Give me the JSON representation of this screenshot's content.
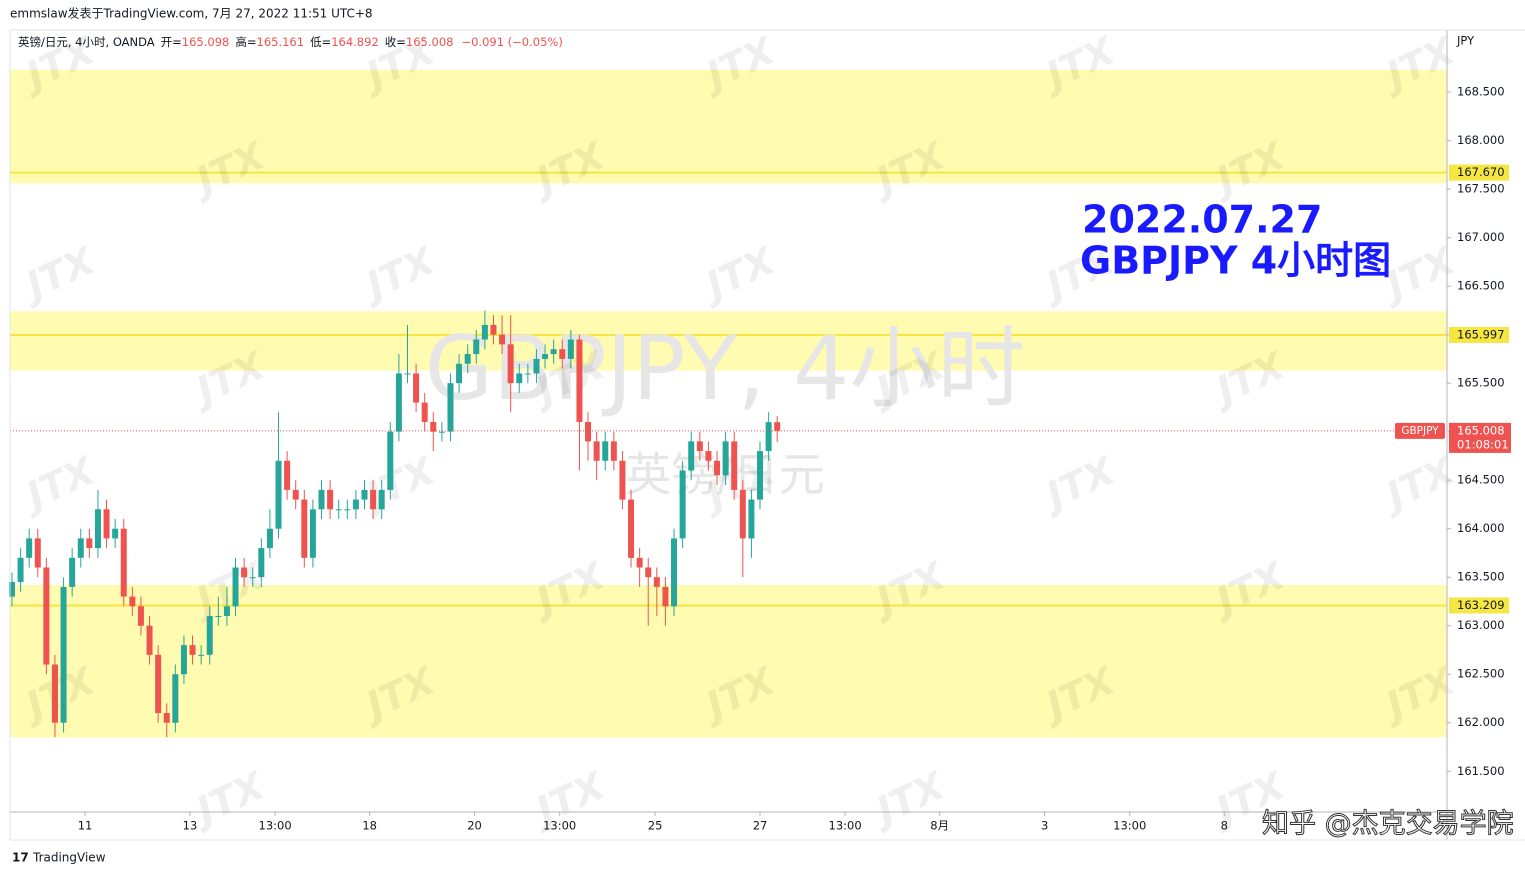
{
  "header": "emmslaw发表于TradingView.com, 7月 27, 2022 11:51 UTC+8",
  "logo": "TradingView",
  "credit": "知乎 @杰克交易学院",
  "brand_watermark": "JTX",
  "chart_data": {
    "type": "candlestick",
    "legend": {
      "symbol": "英镑/日元, 4小时, OANDA",
      "open_label": "开=",
      "high_label": "高=",
      "low_label": "低=",
      "close_label": "收=",
      "change": "−0.091 (−0.05%)"
    },
    "annotation": [
      "2022.07.27",
      "GBPJPY 4小时图"
    ],
    "watermark": [
      "GBPJPY, 4小时",
      "英镑/日元"
    ],
    "y_unit": "JPY",
    "symbol_tag": "GBPJPY",
    "countdown": "01:08:01",
    "up_color": "#26a69a",
    "down_color": "#ef5350",
    "open": [
      163.3,
      163.45,
      163.7,
      163.9,
      163.6,
      162.6,
      162.0,
      163.4,
      163.7,
      163.9,
      163.8,
      164.2,
      163.9,
      164.0,
      163.3,
      163.2,
      163.0,
      162.7,
      162.1,
      162.0,
      162.5,
      162.8,
      162.7,
      162.7,
      163.1,
      163.1,
      163.2,
      163.6,
      163.5,
      163.5,
      163.8,
      164.0,
      164.7,
      164.4,
      164.3,
      163.7,
      164.2,
      164.4,
      164.2,
      164.2,
      164.2,
      164.3,
      164.4,
      164.2,
      164.4,
      165.0,
      165.6,
      165.6,
      165.3,
      165.1,
      165.0,
      165.0,
      165.5,
      165.7,
      165.8,
      165.95,
      166.1,
      166.0,
      165.9,
      165.5,
      165.6,
      165.6,
      165.75,
      165.8,
      165.85,
      165.75,
      165.95,
      165.1,
      164.9,
      164.7,
      164.9,
      164.7,
      164.3,
      163.7,
      163.6,
      163.5,
      163.4,
      163.2,
      163.9,
      164.6,
      164.9,
      164.8,
      164.7,
      164.55,
      164.9,
      164.4,
      163.9,
      164.3,
      164.8,
      165.098
    ],
    "high": [
      163.55,
      163.8,
      164.0,
      164.0,
      163.7,
      162.7,
      163.5,
      163.8,
      164.0,
      164.0,
      164.4,
      164.3,
      164.1,
      164.1,
      163.4,
      163.3,
      163.1,
      162.8,
      162.2,
      162.6,
      162.9,
      162.9,
      162.8,
      163.2,
      163.3,
      163.4,
      163.7,
      163.7,
      163.6,
      163.9,
      164.2,
      165.2,
      164.8,
      164.5,
      164.4,
      164.3,
      164.5,
      164.5,
      164.3,
      164.3,
      164.4,
      164.5,
      164.5,
      164.5,
      165.1,
      165.8,
      166.1,
      165.7,
      165.4,
      165.2,
      165.1,
      165.6,
      165.8,
      165.9,
      166.05,
      166.25,
      166.2,
      166.2,
      166.2,
      165.7,
      165.7,
      165.85,
      165.9,
      165.95,
      165.95,
      166.05,
      166.0,
      165.2,
      165.0,
      165.0,
      165.0,
      164.8,
      164.4,
      163.8,
      163.7,
      163.6,
      163.5,
      164.0,
      164.7,
      165.0,
      165.0,
      164.9,
      164.8,
      165.0,
      165.0,
      164.5,
      164.4,
      164.9,
      165.2,
      165.161
    ],
    "low": [
      163.2,
      163.35,
      163.6,
      163.5,
      162.5,
      161.85,
      161.9,
      163.3,
      163.6,
      163.7,
      163.7,
      163.8,
      163.8,
      163.2,
      163.1,
      162.9,
      162.6,
      162.0,
      161.85,
      161.9,
      162.4,
      162.6,
      162.6,
      162.6,
      163.0,
      163.0,
      163.1,
      163.4,
      163.4,
      163.4,
      163.7,
      163.9,
      164.3,
      164.2,
      163.6,
      163.6,
      164.1,
      164.1,
      164.1,
      164.1,
      164.1,
      164.2,
      164.1,
      164.1,
      164.3,
      164.9,
      165.5,
      165.2,
      165.0,
      164.8,
      164.9,
      164.9,
      165.4,
      165.6,
      165.7,
      165.85,
      165.9,
      165.8,
      165.2,
      165.4,
      165.5,
      165.5,
      165.65,
      165.7,
      165.65,
      165.65,
      164.6,
      164.7,
      164.5,
      164.6,
      164.6,
      164.2,
      163.6,
      163.4,
      163.0,
      163.1,
      163.0,
      163.1,
      163.8,
      164.5,
      164.7,
      164.6,
      164.45,
      164.45,
      164.3,
      163.5,
      163.7,
      164.2,
      164.7,
      164.892
    ],
    "close": [
      163.45,
      163.7,
      163.9,
      163.6,
      162.6,
      162.0,
      163.4,
      163.7,
      163.9,
      163.8,
      164.2,
      163.9,
      164.0,
      163.3,
      163.2,
      163.0,
      162.7,
      162.1,
      162.0,
      162.5,
      162.8,
      162.7,
      162.7,
      163.1,
      163.1,
      163.2,
      163.6,
      163.5,
      163.5,
      163.8,
      164.0,
      164.7,
      164.4,
      164.3,
      163.7,
      164.2,
      164.4,
      164.2,
      164.2,
      164.2,
      164.3,
      164.4,
      164.2,
      164.4,
      165.0,
      165.6,
      165.6,
      165.3,
      165.1,
      165.0,
      165.0,
      165.5,
      165.7,
      165.8,
      165.95,
      166.1,
      166.0,
      165.9,
      165.5,
      165.6,
      165.6,
      165.75,
      165.8,
      165.85,
      165.75,
      165.95,
      165.1,
      164.9,
      164.7,
      164.9,
      164.7,
      164.3,
      163.7,
      163.6,
      163.5,
      163.4,
      163.2,
      163.9,
      164.6,
      164.9,
      164.8,
      164.7,
      164.55,
      164.9,
      164.4,
      163.9,
      164.3,
      164.8,
      165.098,
      165.008
    ],
    "xlim": [
      -0.23,
      166.9
    ],
    "xticks": [
      {
        "value": 8.5,
        "label": "11"
      },
      {
        "value": 20.7,
        "label": "13"
      },
      {
        "value": 30.6,
        "label": "13:00"
      },
      {
        "value": 41.6,
        "label": "18"
      },
      {
        "value": 53.8,
        "label": "20"
      },
      {
        "value": 63.7,
        "label": "13:00"
      },
      {
        "value": 74.8,
        "label": "25"
      },
      {
        "value": 87,
        "label": "27"
      },
      {
        "value": 96.9,
        "label": "13:00"
      },
      {
        "value": 107.9,
        "label": "8月"
      },
      {
        "value": 120.1,
        "label": "3"
      },
      {
        "value": 130,
        "label": "13:00"
      },
      {
        "value": 141,
        "label": "8"
      }
    ],
    "ylim": [
      161.08,
      169.14
    ],
    "yticks": [
      {
        "value": 168.5,
        "label": "168.500"
      },
      {
        "value": 168,
        "label": "168.000"
      },
      {
        "value": 167.5,
        "label": "167.500"
      },
      {
        "value": 167,
        "label": "167.000"
      },
      {
        "value": 166.5,
        "label": "166.500"
      },
      {
        "value": 166,
        "label": "166.000"
      },
      {
        "value": 165.5,
        "label": "165.500"
      },
      {
        "value": 165,
        "label": "165.000"
      },
      {
        "value": 164.5,
        "label": "164.500"
      },
      {
        "value": 164,
        "label": "164.000"
      },
      {
        "value": 163.5,
        "label": "163.500"
      },
      {
        "value": 163,
        "label": "163.000"
      },
      {
        "value": 162.5,
        "label": "162.500"
      },
      {
        "value": 162,
        "label": "162.000"
      },
      {
        "value": 161.5,
        "label": "161.500"
      }
    ],
    "zones": [
      {
        "from": 167.56,
        "to": 168.73
      },
      {
        "from": 165.63,
        "to": 166.24
      },
      {
        "from": 161.85,
        "to": 163.42
      }
    ],
    "zone_color": "#fffbb0",
    "levels": [
      {
        "value": 167.67,
        "label": "167.670"
      },
      {
        "value": 165.997,
        "label": "165.997"
      },
      {
        "value": 163.209,
        "label": "163.209"
      }
    ],
    "level_color": "#f5e642"
  }
}
